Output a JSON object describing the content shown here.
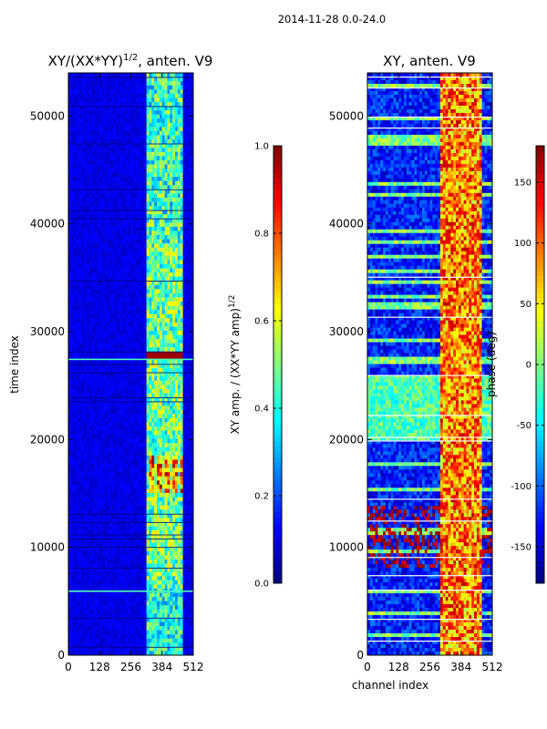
{
  "chart_data": [
    {
      "type": "heatmap",
      "suptitle": "2014-11-28 0.0-24.0",
      "title": "XY/(XX*YY)^{1/2}, anten. V9",
      "title_main": "XY/(XX*YY)",
      "title_sup": "1/2",
      "title_tail": ", anten. V9",
      "xlabel": "",
      "ylabel": "time index",
      "xlim": [
        0,
        512
      ],
      "ylim": [
        0,
        54000
      ],
      "xticks": [
        0,
        128,
        256,
        384,
        512
      ],
      "xtick_labels": [
        "0",
        "128",
        "256",
        "384",
        "512"
      ],
      "yticks": [
        0,
        10000,
        20000,
        30000,
        40000,
        50000
      ],
      "ytick_labels": [
        "0",
        "10000",
        "20000",
        "30000",
        "40000",
        "50000"
      ],
      "colormap": "jet",
      "colorbar": {
        "label": "XY amp. / (XX*YY amp)^{1/2}",
        "label_main": "XY amp. / (XX*YY amp)",
        "label_sup": "1/2",
        "range": [
          0.0,
          1.0
        ],
        "ticks": [
          0.0,
          0.2,
          0.4,
          0.6,
          0.8,
          1.0
        ],
        "tick_labels": [
          "0.0",
          "0.2",
          "0.4",
          "0.6",
          "0.8",
          "1.0"
        ]
      },
      "description_values": {
        "background_level": 0.08,
        "active_channels": [
          330,
          470
        ],
        "high_blocks_time": [
          27300,
          27900,
          15000,
          18500
        ]
      }
    },
    {
      "type": "heatmap",
      "title": "XY, anten. V9",
      "xlabel": "channel index",
      "ylabel": "",
      "xlim": [
        0,
        512
      ],
      "ylim": [
        0,
        54000
      ],
      "xticks": [
        0,
        128,
        256,
        384,
        512
      ],
      "xtick_labels": [
        "0",
        "128",
        "256",
        "384",
        "512"
      ],
      "yticks": [
        0,
        10000,
        20000,
        30000,
        40000,
        50000
      ],
      "ytick_labels": [
        "0",
        "10000",
        "20000",
        "30000",
        "40000",
        "50000"
      ],
      "colormap": "jet",
      "colorbar": {
        "label": "phase (deg)",
        "range": [
          -180,
          180
        ],
        "ticks": [
          -150,
          -100,
          -50,
          0,
          50,
          100,
          150
        ],
        "tick_labels": [
          "-150",
          "-100",
          "-50",
          "0",
          "50",
          "100",
          "150"
        ]
      }
    }
  ]
}
